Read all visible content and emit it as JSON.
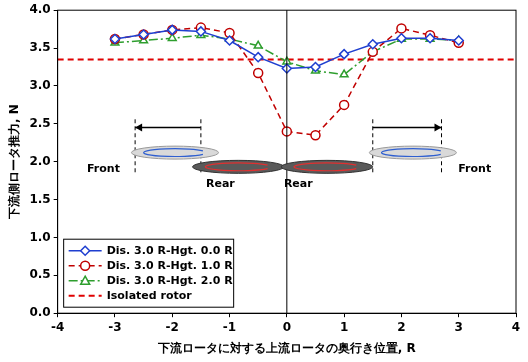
{
  "chart_data": {
    "type": "line",
    "x_label": "下流ロータに対する上流ロータの奥行き位置, R",
    "y_label": "下流側ロータ推力, N",
    "xlim": [
      -4,
      4
    ],
    "xticks": [
      -4,
      -3,
      -2,
      -1,
      0,
      1,
      2,
      3,
      4
    ],
    "ylim": [
      0,
      4
    ],
    "yticks": [
      {
        "value": 0,
        "label": "0.0"
      },
      {
        "value": 0.5,
        "label": "0.5"
      },
      {
        "value": 1,
        "label": "1.0"
      },
      {
        "value": 1.5,
        "label": "1.5"
      },
      {
        "value": 2,
        "label": "2.0"
      },
      {
        "value": 2.5,
        "label": "2.5"
      },
      {
        "value": 3,
        "label": "3.0"
      },
      {
        "value": 3.5,
        "label": "3.5"
      },
      {
        "value": 4,
        "label": "4.0"
      }
    ],
    "grid": false,
    "legend": "lower left",
    "vlines": [
      0
    ],
    "annotations": [
      "Front",
      "Rear",
      "Rear",
      "Front"
    ],
    "series": [
      {
        "name": "Dis. 3.0 R-Hgt. 0.0 R",
        "color": "#1f3fd0",
        "marker": "diamond",
        "line_style": "solid",
        "x": [
          -3,
          -2.5,
          -2,
          -1.5,
          -1,
          -0.5,
          0,
          0.5,
          1,
          1.5,
          2,
          2.5,
          3
        ],
        "values": [
          3.62,
          3.68,
          3.74,
          3.72,
          3.6,
          3.38,
          3.23,
          3.25,
          3.42,
          3.55,
          3.63,
          3.63,
          3.6
        ]
      },
      {
        "name": "Dis. 3.0 R-Hgt. 1.0 R",
        "color": "#c00000",
        "marker": "circle",
        "line_style": "dashed",
        "x": [
          -3,
          -2.5,
          -2,
          -1.5,
          -1,
          -0.5,
          0,
          0.5,
          1,
          1.5,
          2,
          2.5,
          3
        ],
        "values": [
          3.62,
          3.68,
          3.74,
          3.77,
          3.7,
          3.17,
          2.4,
          2.35,
          2.75,
          3.45,
          3.76,
          3.67,
          3.57
        ]
      },
      {
        "name": "Dis. 3.0 R-Hgt. 2.0 R",
        "color": "#2e9e2e",
        "marker": "triangle",
        "line_style": "dashdot",
        "x": [
          -3,
          -2.5,
          -2,
          -1.5,
          -1,
          -0.5,
          0,
          0.5,
          1,
          1.5,
          2,
          2.5,
          3
        ],
        "values": [
          3.57,
          3.6,
          3.63,
          3.67,
          3.62,
          3.53,
          3.32,
          3.2,
          3.15,
          3.45,
          3.62,
          3.62,
          3.6
        ]
      },
      {
        "name": "Isolated rotor",
        "color": "#e00000",
        "marker": null,
        "line_style": "dashed",
        "x": [
          -4,
          4
        ],
        "values": [
          3.35,
          3.35
        ]
      }
    ]
  }
}
